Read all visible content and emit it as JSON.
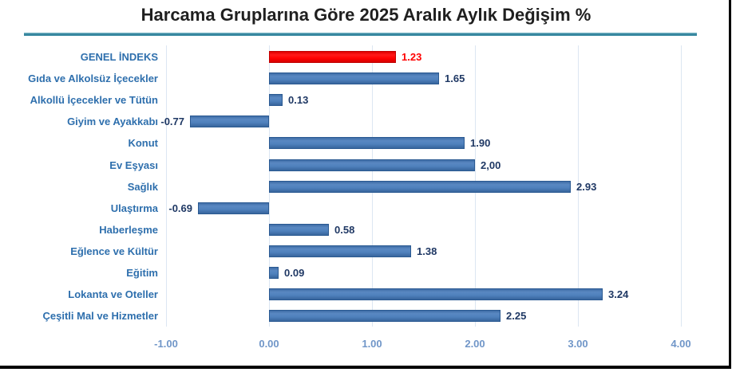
{
  "title": "Harcama Gruplarına Göre 2025 Aralık Aylık Değişim %",
  "chart_data": {
    "type": "bar",
    "orientation": "horizontal",
    "title": "Harcama Gruplarına Göre 2025 Aralık Aylık Değişim %",
    "categories": [
      "GENEL İNDEKS",
      "Gıda ve Alkolsüz İçecekler",
      "Alkollü İçecekler ve Tütün",
      "Giyim ve Ayakkabı",
      "Konut",
      "Ev Eşyası",
      "Sağlık",
      "Ulaştırma",
      "Haberleşme",
      "Eğlence ve Kültür",
      "Eğitim",
      "Lokanta ve Oteller",
      "Çeşitli Mal ve Hizmetler"
    ],
    "values": [
      1.23,
      1.65,
      0.13,
      -0.77,
      1.9,
      2.0,
      2.93,
      -0.69,
      0.58,
      1.38,
      0.09,
      3.24,
      2.25
    ],
    "value_labels": [
      "1.23",
      "1.65",
      "0.13",
      "-0.77",
      "1.90",
      "2,00",
      "2.93",
      "-0.69",
      "0.58",
      "1.38",
      "0.09",
      "3.24",
      "2.25"
    ],
    "highlight_index": 0,
    "xlim": [
      -1.0,
      4.0
    ],
    "x_ticks": [
      -1,
      0,
      1,
      2,
      3,
      4
    ],
    "x_tick_labels": [
      "-1.00",
      "0.00",
      "1.00",
      "2.00",
      "3.00",
      "4.00"
    ],
    "grid": "vertical-only",
    "legend": "none",
    "colors": {
      "bar": "#4f81bd",
      "bar_edge": "#2b5a92",
      "highlight_bar": "#ff0000",
      "highlight_edge": "#c00000",
      "category_label": "#2e6fad",
      "value_label": "#1f3864",
      "highlight_value_label": "#ff0000",
      "tick_label": "#7096c8",
      "gridline": "#dce6f2",
      "title_text": "#1f1f1f",
      "title_underline": "#3d8ea6"
    }
  }
}
